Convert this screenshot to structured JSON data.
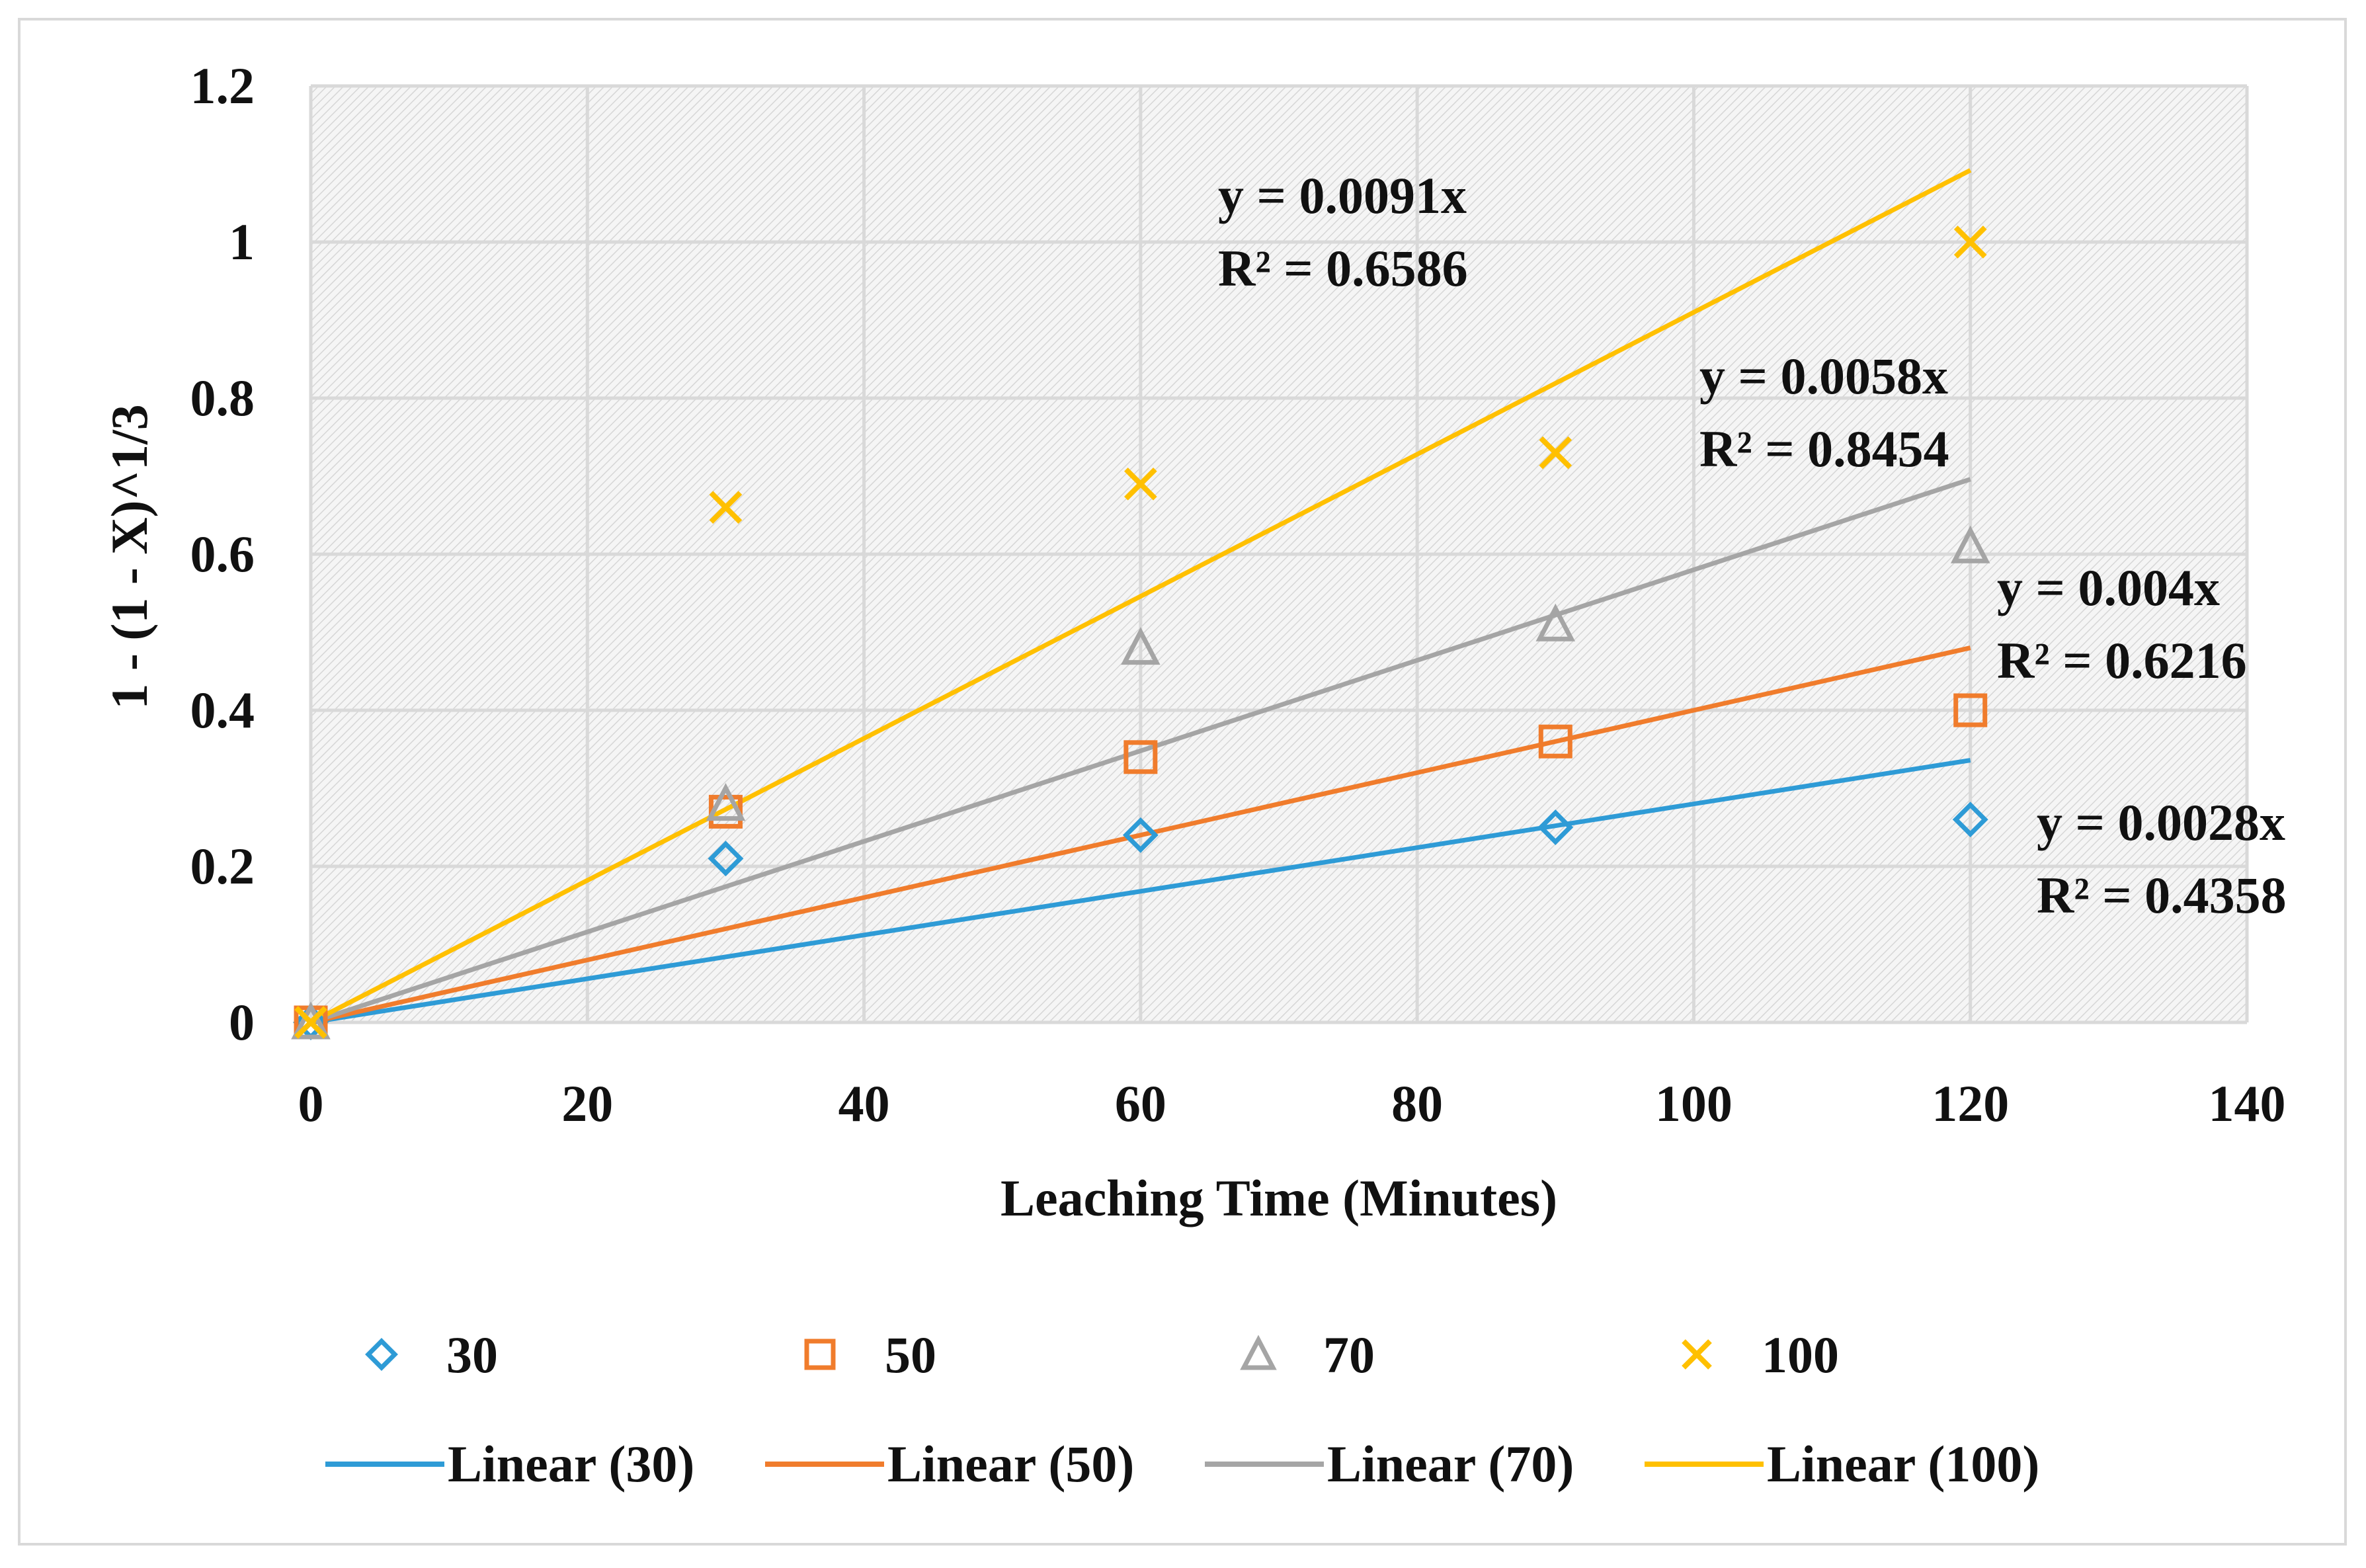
{
  "chart_data": {
    "type": "scatter",
    "title": "",
    "xlabel": "Leaching Time (Minutes)",
    "ylabel": "1 - (1 - X)^1/3",
    "xlim": [
      0,
      140
    ],
    "ylim": [
      0,
      1.2
    ],
    "xticks": [
      0,
      20,
      40,
      60,
      80,
      100,
      120,
      140
    ],
    "yticks": [
      0,
      0.2,
      0.4,
      0.6,
      0.8,
      1,
      1.2
    ],
    "xtick_labels": [
      "0",
      "20",
      "40",
      "60",
      "80",
      "100",
      "120",
      "140"
    ],
    "ytick_labels": [
      "0",
      "0.2",
      "0.4",
      "0.6",
      "0.8",
      "1",
      "1.2"
    ],
    "grid": true,
    "legend_position": "bottom",
    "series": [
      {
        "name": "30",
        "marker": "diamond",
        "color": "#2e9bd6",
        "x": [
          0,
          30,
          60,
          90,
          120
        ],
        "y": [
          0,
          0.21,
          0.24,
          0.25,
          0.26
        ],
        "trend_label": "Linear (30)",
        "slope": 0.0028,
        "equation": "y = 0.0028x",
        "r2": "R² = 0.4358"
      },
      {
        "name": "50",
        "marker": "square",
        "color": "#f07c2c",
        "x": [
          0,
          30,
          60,
          90,
          120
        ],
        "y": [
          0,
          0.27,
          0.34,
          0.36,
          0.4
        ],
        "trend_label": "Linear (50)",
        "slope": 0.004,
        "equation": "y = 0.004x",
        "r2": "R² = 0.6216"
      },
      {
        "name": "70",
        "marker": "triangle",
        "color": "#a5a5a5",
        "x": [
          0,
          30,
          60,
          90,
          120
        ],
        "y": [
          0,
          0.28,
          0.48,
          0.51,
          0.61
        ],
        "trend_label": "Linear (70)",
        "slope": 0.0058,
        "equation": "y = 0.0058x",
        "r2": "R² = 0.8454"
      },
      {
        "name": "100",
        "marker": "x",
        "color": "#ffc000",
        "x": [
          0,
          30,
          60,
          90,
          120
        ],
        "y": [
          0,
          0.66,
          0.69,
          0.73,
          1.0
        ],
        "trend_label": "Linear (100)",
        "slope": 0.0091,
        "equation": "y = 0.0091x",
        "r2": "R² = 0.6586"
      }
    ]
  }
}
